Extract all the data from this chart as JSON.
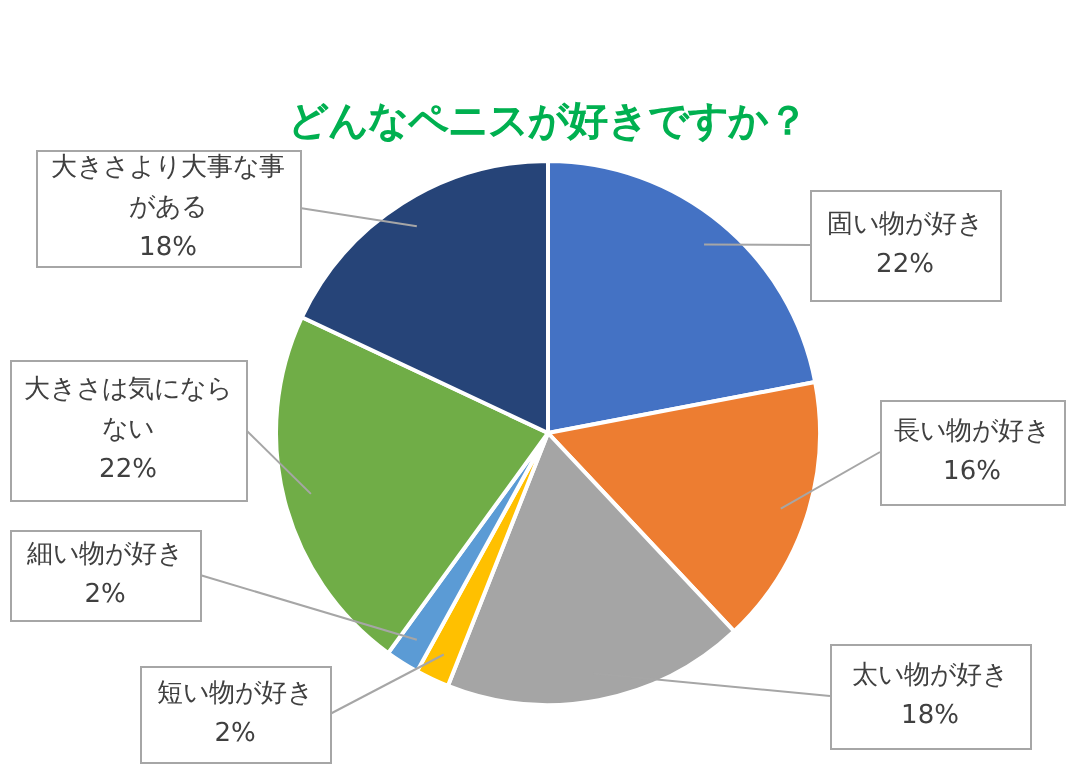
{
  "chart_data": {
    "type": "pie",
    "title": "どんなペニスが好きですか？",
    "categories": [
      "固い物が好き",
      "長い物が好き",
      "太い物が好き",
      "短い物が好き",
      "細い物が好き",
      "大きさは気にならない",
      "大きさより大事な事がある"
    ],
    "values": [
      22,
      16,
      18,
      2,
      2,
      22,
      18
    ],
    "value_labels": [
      "22%",
      "16%",
      "18%",
      "2%",
      "2%",
      "22%",
      "18%"
    ],
    "colors": [
      "#4472c4",
      "#ed7d31",
      "#a5a5a5",
      "#ffc000",
      "#5b9bd5",
      "#70ad47",
      "#264478"
    ],
    "legend": false
  }
}
